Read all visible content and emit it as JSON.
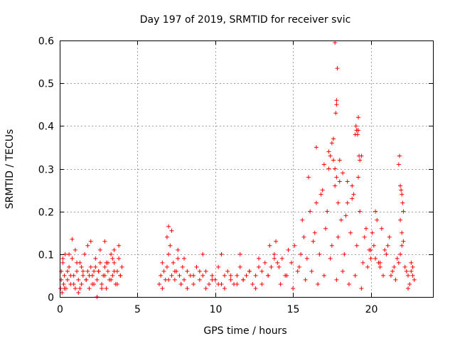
{
  "chart_data": {
    "type": "scatter",
    "title": "Day 197 of 2019, SRMTID for receiver svic",
    "xlabel": "GPS time / hours",
    "ylabel": "SRMTID / TECUs",
    "xlim": [
      0,
      24
    ],
    "ylim": [
      0,
      0.6
    ],
    "xticks": [
      0,
      5,
      10,
      15,
      20
    ],
    "yticks": [
      0,
      0.1,
      0.2,
      0.3,
      0.4,
      0.5,
      0.6
    ],
    "xtick_labels": [
      "0",
      "5",
      "10",
      "15",
      "20"
    ],
    "ytick_labels": [
      "0",
      "0.1",
      "0.2",
      "0.3",
      "0.4",
      "0.5",
      "0.6"
    ],
    "grid": true,
    "marker": "+",
    "color": "#ff0000",
    "series": [
      {
        "name": "SRMTID",
        "x": [
          0.05,
          0.1,
          0.15,
          0.2,
          0.25,
          0.3,
          0.35,
          0.4,
          0.5,
          0.6,
          0.7,
          0.8,
          0.9,
          1.0,
          1.1,
          1.2,
          1.3,
          1.4,
          1.5,
          1.6,
          1.7,
          1.8,
          1.9,
          2.0,
          2.1,
          2.2,
          2.3,
          2.4,
          2.5,
          2.6,
          2.7,
          2.8,
          2.9,
          3.0,
          3.1,
          3.2,
          3.3,
          3.4,
          3.5,
          3.6,
          3.7,
          3.8,
          3.9,
          4.0,
          0.1,
          0.3,
          0.5,
          0.7,
          0.9,
          1.1,
          1.3,
          1.5,
          1.7,
          1.9,
          2.1,
          2.3,
          2.5,
          2.7,
          2.9,
          3.1,
          3.3,
          3.5,
          3.7,
          3.9,
          0.2,
          0.6,
          1.0,
          1.4,
          1.8,
          2.2,
          2.6,
          3.0,
          3.4,
          3.8,
          0.8,
          2.0,
          2.9,
          3.5,
          1.2,
          2.4,
          6.4,
          6.5,
          6.6,
          6.7,
          6.8,
          6.9,
          7.0,
          7.1,
          7.2,
          7.3,
          7.4,
          7.5,
          7.6,
          7.7,
          7.8,
          7.9,
          8.0,
          8.2,
          8.4,
          8.6,
          8.8,
          9.0,
          9.2,
          9.4,
          9.6,
          9.8,
          10.0,
          10.2,
          10.4,
          10.6,
          10.8,
          11.0,
          11.2,
          11.4,
          11.6,
          11.8,
          12.0,
          12.2,
          12.4,
          12.6,
          12.8,
          13.0,
          13.2,
          13.4,
          13.6,
          13.8,
          14.0,
          6.6,
          7.0,
          7.4,
          7.8,
          8.2,
          8.6,
          9.0,
          9.4,
          9.8,
          10.2,
          10.6,
          11.0,
          11.4,
          11.8,
          12.2,
          12.6,
          13.0,
          13.4,
          13.8,
          7.0,
          7.2,
          6.9,
          7.6,
          8.0,
          9.2,
          10.4,
          11.6,
          12.8,
          13.5,
          13.9,
          14.1,
          14.3,
          14.5,
          14.7,
          14.9,
          15.1,
          15.3,
          15.5,
          15.7,
          15.9,
          16.1,
          16.3,
          16.5,
          16.7,
          16.9,
          17.1,
          17.3,
          17.5,
          17.7,
          17.9,
          18.1,
          18.3,
          18.5,
          18.7,
          18.9,
          19.1,
          19.3,
          19.5,
          19.7,
          19.9,
          14.2,
          14.6,
          15.0,
          15.4,
          15.8,
          16.2,
          16.6,
          17.0,
          17.4,
          17.8,
          18.2,
          18.6,
          19.0,
          19.4,
          19.8,
          15.6,
          16.0,
          16.4,
          16.8,
          17.2,
          17.6,
          18.0,
          18.4,
          18.8,
          19.2,
          19.6,
          16.5,
          17.0,
          17.3,
          17.4,
          17.5,
          17.6,
          17.7,
          17.8,
          17.9,
          18.0,
          18.2,
          18.5,
          18.8,
          19.0,
          19.1,
          19.2,
          19.3,
          19.4,
          17.75,
          17.8,
          17.8,
          17.85,
          17.7,
          19.05,
          19.1,
          19.15,
          19.2,
          19.25,
          20.0,
          20.2,
          20.4,
          20.6,
          20.8,
          21.0,
          21.2,
          21.4,
          21.6,
          21.8,
          22.0,
          22.2,
          22.4,
          22.6,
          22.8,
          20.1,
          20.5,
          20.9,
          21.3,
          21.7,
          22.1,
          22.5,
          20.3,
          20.7,
          21.1,
          21.5,
          21.9,
          22.3,
          22.7,
          21.8,
          21.85,
          21.9,
          21.95,
          22.0,
          22.05,
          22.1,
          21.9,
          22.0,
          20.0,
          20.3,
          20.6,
          22.4,
          22.6,
          22.7
        ],
        "y": [
          0.02,
          0.06,
          0.01,
          0.08,
          0.03,
          0.05,
          0.1,
          0.02,
          0.04,
          0.07,
          0.03,
          0.09,
          0.05,
          0.02,
          0.06,
          0.04,
          0.08,
          0.03,
          0.05,
          0.1,
          0.04,
          0.06,
          0.02,
          0.07,
          0.05,
          0.03,
          0.09,
          0.04,
          0.06,
          0.08,
          0.03,
          0.05,
          0.07,
          0.02,
          0.06,
          0.04,
          0.1,
          0.05,
          0.08,
          0.03,
          0.06,
          0.09,
          0.05,
          0.07,
          0.04,
          0.02,
          0.06,
          0.05,
          0.03,
          0.08,
          0.02,
          0.06,
          0.04,
          0.05,
          0.03,
          0.07,
          0.06,
          0.02,
          0.05,
          0.08,
          0.04,
          0.06,
          0.03,
          0.05,
          0.09,
          0.1,
          0.11,
          0.07,
          0.12,
          0.06,
          0.11,
          0.08,
          0.09,
          0.12,
          0.135,
          0.13,
          0.13,
          0.11,
          0.01,
          0.0,
          0.03,
          0.05,
          0.08,
          0.06,
          0.04,
          0.07,
          0.1,
          0.12,
          0.05,
          0.08,
          0.04,
          0.06,
          0.09,
          0.05,
          0.03,
          0.07,
          0.04,
          0.06,
          0.05,
          0.03,
          0.07,
          0.04,
          0.05,
          0.06,
          0.03,
          0.05,
          0.04,
          0.07,
          0.03,
          0.05,
          0.06,
          0.04,
          0.03,
          0.05,
          0.07,
          0.04,
          0.05,
          0.06,
          0.03,
          0.05,
          0.07,
          0.06,
          0.08,
          0.05,
          0.07,
          0.09,
          0.08,
          0.02,
          0.04,
          0.06,
          0.03,
          0.02,
          0.05,
          0.06,
          0.02,
          0.04,
          0.03,
          0.02,
          0.05,
          0.03,
          0.04,
          0.06,
          0.02,
          0.03,
          0.05,
          0.1,
          0.165,
          0.155,
          0.14,
          0.11,
          0.09,
          0.1,
          0.1,
          0.1,
          0.09,
          0.12,
          0.13,
          0.07,
          0.09,
          0.05,
          0.11,
          0.08,
          0.12,
          0.06,
          0.1,
          0.14,
          0.09,
          0.2,
          0.13,
          0.22,
          0.1,
          0.25,
          0.16,
          0.3,
          0.12,
          0.26,
          0.14,
          0.18,
          0.1,
          0.22,
          0.15,
          0.24,
          0.12,
          0.2,
          0.08,
          0.16,
          0.11,
          0.03,
          0.05,
          0.02,
          0.07,
          0.04,
          0.06,
          0.03,
          0.05,
          0.09,
          0.04,
          0.06,
          0.03,
          0.05,
          0.02,
          0.07,
          0.18,
          0.28,
          0.15,
          0.24,
          0.2,
          0.32,
          0.27,
          0.19,
          0.23,
          0.28,
          0.14,
          0.35,
          0.31,
          0.34,
          0.33,
          0.36,
          0.37,
          0.3,
          0.28,
          0.22,
          0.32,
          0.29,
          0.27,
          0.26,
          0.38,
          0.39,
          0.42,
          0.32,
          0.33,
          0.43,
          0.45,
          0.46,
          0.535,
          0.595,
          0.4,
          0.39,
          0.38,
          0.39,
          0.33,
          0.09,
          0.12,
          0.18,
          0.08,
          0.05,
          0.1,
          0.14,
          0.06,
          0.04,
          0.08,
          0.12,
          0.07,
          0.05,
          0.06,
          0.04,
          0.15,
          0.08,
          0.11,
          0.05,
          0.09,
          0.13,
          0.03,
          0.2,
          0.16,
          0.12,
          0.07,
          0.1,
          0.06,
          0.05,
          0.31,
          0.33,
          0.26,
          0.25,
          0.24,
          0.22,
          0.2,
          0.18,
          0.15,
          0.11,
          0.09,
          0.07,
          0.02,
          0.08,
          0.07
        ]
      }
    ]
  }
}
